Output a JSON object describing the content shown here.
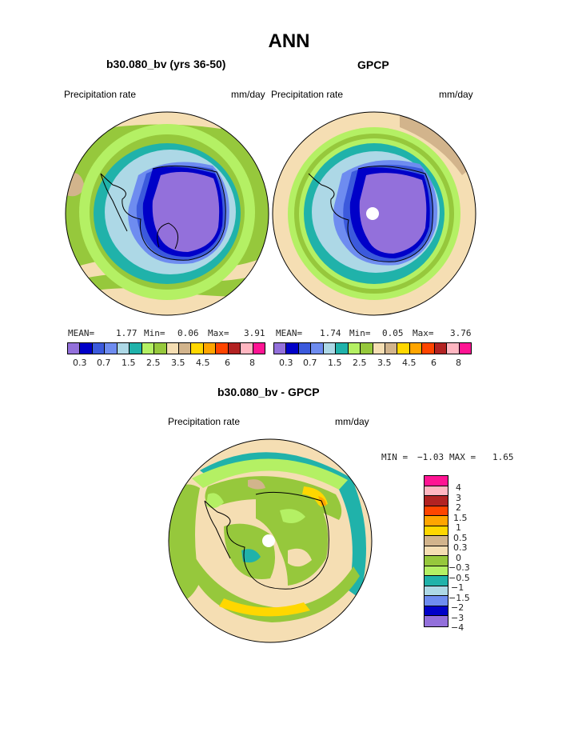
{
  "figure": {
    "title": "ANN",
    "colors": {
      "c_03": "#9370db",
      "c_05": "#0000c8",
      "c_07": "#3c5adc",
      "c_10": "#6e8cf0",
      "c_15": "#add8e6",
      "c_20": "#20b2aa",
      "c_25": "#b4f064",
      "c_30": "#96c83c",
      "c_35": "#f5deb3",
      "c_40": "#d2b48c",
      "c_45": "#ffd700",
      "c_50": "#ffa500",
      "c_60": "#ff4500",
      "c_70": "#b22222",
      "c_80": "#ffb6c1",
      "c_90": "#ff1493",
      "coast": "#000000"
    }
  },
  "chart_data": [
    {
      "type": "polar-contour-map",
      "title": "b30.080_bv (yrs 36-50)",
      "left_label": "Precipitation rate",
      "right_label": "mm/day",
      "stats": {
        "mean_label": "MEAN=",
        "mean": "1.77",
        "min_label": "Min=",
        "min": "0.06",
        "max_label": "Max=",
        "max": "3.91"
      },
      "levels": [
        0.3,
        0.5,
        0.7,
        1.0,
        1.5,
        2.0,
        2.5,
        3.0,
        3.5,
        4.0,
        4.5,
        5.0,
        6.0,
        7.0,
        8.0
      ],
      "tick_labels": [
        "0.3",
        "0.7",
        "1.5",
        "2.5",
        "3.5",
        "4.5",
        "6",
        "8"
      ],
      "ring_values": [
        3.0,
        2.5,
        3.0,
        2.5,
        1.5,
        1.0,
        0.7,
        0.5,
        0.3
      ]
    },
    {
      "type": "polar-contour-map",
      "title": "GPCP",
      "left_label": "Precipitation rate",
      "right_label": "mm/day",
      "stats": {
        "mean_label": "MEAN=",
        "mean": "1.74",
        "min_label": "Min=",
        "min": "0.05",
        "max_label": "Max=",
        "max": "3.76"
      },
      "levels": [
        0.3,
        0.5,
        0.7,
        1.0,
        1.5,
        2.0,
        2.5,
        3.0,
        3.5,
        4.0,
        4.5,
        5.0,
        6.0,
        7.0,
        8.0
      ],
      "tick_labels": [
        "0.3",
        "0.7",
        "1.5",
        "2.5",
        "3.5",
        "4.5",
        "6",
        "8"
      ],
      "ring_values": [
        3.5,
        2.5,
        3.0,
        2.0,
        1.5,
        1.0,
        0.7,
        0.5,
        0.3
      ]
    },
    {
      "type": "polar-contour-map",
      "title": "b30.080_bv - GPCP",
      "left_label": "Precipitation rate",
      "right_label": "mm/day",
      "stats": {
        "min_label": "MIN =",
        "min": "−1.03",
        "max_label": "MAX =",
        "max": "1.65"
      },
      "levels": [
        -4,
        -3,
        -2,
        -1.5,
        -1,
        -0.5,
        -0.3,
        0,
        0.3,
        0.5,
        1,
        1.5,
        2,
        3,
        4
      ],
      "tick_labels": [
        "4",
        "3",
        "2",
        "1.5",
        "1",
        "0.5",
        "0.3",
        "0",
        "−0.3",
        "−0.5",
        "−1",
        "−1.5",
        "−2",
        "−3",
        "−4"
      ]
    }
  ]
}
